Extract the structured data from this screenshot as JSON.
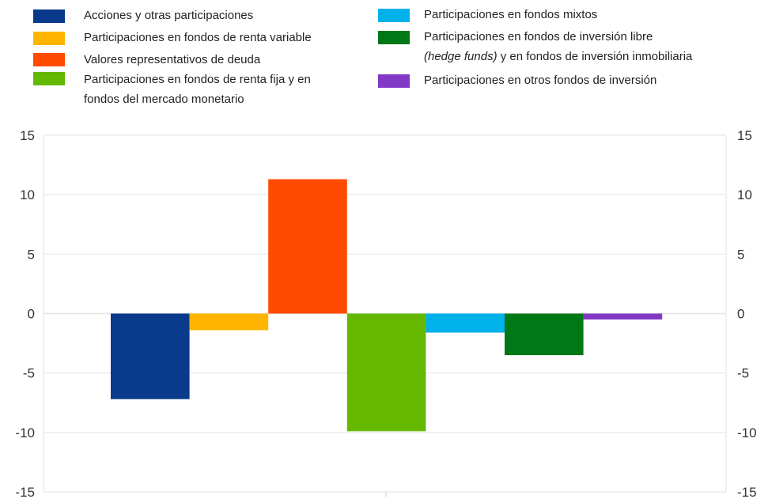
{
  "chart_data": {
    "type": "bar",
    "categories": [
      ""
    ],
    "series": [
      {
        "name": "Acciones y otras participaciones",
        "color": "#0a3a8c",
        "values": [
          -7.2
        ]
      },
      {
        "name": "Participaciones en fondos de renta variable",
        "color": "#ffb400",
        "values": [
          -1.4
        ]
      },
      {
        "name": "Valores representativos de deuda",
        "color": "#ff4b00",
        "values": [
          11.3
        ]
      },
      {
        "name": "Participaciones en fondos de renta fija y en\nfondos del mercado monetario",
        "color": "#65b800",
        "values": [
          -9.9
        ]
      },
      {
        "name": "Participaciones en fondos mixtos",
        "color": "#00b1ea",
        "values": [
          -1.6
        ]
      },
      {
        "name_parts": [
          "Participaciones en fondos de inversión libre\n",
          "(hedge funds)",
          " y en fondos de inversión inmobiliaria"
        ],
        "color": "#007816",
        "values": [
          -3.5
        ]
      },
      {
        "name": "Participaciones en otros fondos de inversión",
        "color": "#8139c6",
        "values": [
          -0.5
        ]
      }
    ],
    "ylim": [
      -15,
      15
    ],
    "yticks": [
      "15",
      "10",
      "5",
      "0",
      "-5",
      "-10",
      "-15"
    ],
    "ytick_values": [
      15,
      10,
      5,
      0,
      -5,
      -10,
      -15
    ],
    "grid": true,
    "legend_position": "top"
  }
}
